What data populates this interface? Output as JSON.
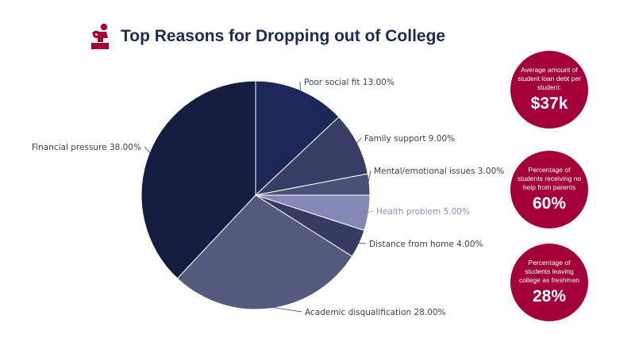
{
  "header": {
    "title": "Top Reasons for Dropping out of College",
    "icon": "student-sitting-icon",
    "icon_color": "#a3003a",
    "title_color": "#1d2a52"
  },
  "chart_data": {
    "type": "pie",
    "title": "Top Reasons for Dropping out of College",
    "start_angle_deg": 0,
    "direction": "clockwise",
    "slices": [
      {
        "label": "Poor social fit 13.00%",
        "value": 13,
        "color": "#1e2858"
      },
      {
        "label": "Family support 9.00%",
        "value": 9,
        "color": "#373d64"
      },
      {
        "label": "Mental/emotional issues 3.00%",
        "value": 3,
        "color": "#4a5076"
      },
      {
        "label": "Health problem 5.00%",
        "value": 5,
        "color": "#8388b6",
        "label_color": "#8a8fbc"
      },
      {
        "label": "Distance from home 4.00%",
        "value": 4,
        "color": "#353b62"
      },
      {
        "label": "Academic disqualification 28.00%",
        "value": 28,
        "color": "#545a7d"
      },
      {
        "label": "Financial pressure 38.00%",
        "value": 38,
        "color": "#141d40"
      }
    ]
  },
  "stats": [
    {
      "caption": "Average amount of student loan debt per student:",
      "value": "$37k"
    },
    {
      "caption": "Percentage of students receiving no help from parents",
      "value": "60%"
    },
    {
      "caption": "Percentage of students leaving college as freshmen",
      "value": "28%"
    }
  ],
  "colors": {
    "accent": "#a3003a",
    "label": "#3a3f5c"
  }
}
